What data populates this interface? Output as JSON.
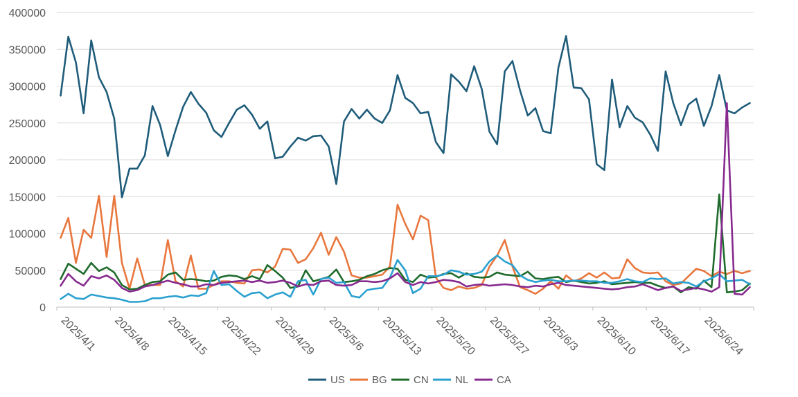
{
  "chart_data": {
    "type": "line",
    "title": "",
    "xlabel": "",
    "ylabel": "",
    "ylim": [
      0,
      400000
    ],
    "yticks": [
      "0",
      "50000",
      "100000",
      "150000",
      "200000",
      "250000",
      "300000",
      "350000",
      "400000"
    ],
    "x_tick_labels": [
      "2025/4/1",
      "2025/4/8",
      "2025/4/15",
      "2025/4/22",
      "2025/4/29",
      "2025/5/6",
      "2025/5/13",
      "2025/5/20",
      "2025/5/27",
      "2025/6/3",
      "2025/6/10",
      "2025/6/17",
      "2025/6/24"
    ],
    "x_start": "2025/4/1",
    "x_end": "2025/6/30",
    "grid": "horizontal",
    "legend_position": "bottom",
    "series": [
      {
        "name": "US",
        "color": "#1f5c7a",
        "values": [
          287000,
          367000,
          332000,
          263000,
          362000,
          312000,
          292000,
          256000,
          149000,
          188000,
          188000,
          206000,
          273000,
          247000,
          205000,
          240000,
          272000,
          292000,
          276000,
          264000,
          240000,
          231000,
          250000,
          268000,
          274000,
          261000,
          242000,
          252000,
          202000,
          204000,
          218000,
          230000,
          226000,
          232000,
          233000,
          218000,
          167000,
          252000,
          269000,
          256000,
          268000,
          256000,
          250000,
          267000,
          315000,
          284000,
          277000,
          263000,
          265000,
          224000,
          209000,
          316000,
          306000,
          293000,
          327000,
          296000,
          238000,
          221000,
          320000,
          334000,
          294000,
          260000,
          270000,
          239000,
          236000,
          325000,
          368000,
          298000,
          297000,
          282000,
          194000,
          186000,
          309000,
          244000,
          273000,
          257000,
          251000,
          234000,
          212000,
          320000,
          277000,
          247000,
          275000,
          283000,
          246000,
          273000,
          315000,
          267000,
          263000,
          271000,
          277000
        ]
      },
      {
        "name": "BG",
        "color": "#e8773d",
        "values": [
          94000,
          121000,
          60000,
          105000,
          94000,
          151000,
          68000,
          151000,
          60000,
          25000,
          66000,
          30000,
          30000,
          30000,
          91000,
          35000,
          28000,
          70000,
          25000,
          25000,
          30000,
          35000,
          35000,
          33000,
          32000,
          50000,
          51000,
          47000,
          55000,
          79000,
          78000,
          60000,
          65000,
          80000,
          101000,
          71000,
          95000,
          75000,
          43000,
          40000,
          40000,
          42000,
          44000,
          55000,
          139000,
          113000,
          92000,
          124000,
          118000,
          40000,
          26000,
          23000,
          28000,
          25000,
          26000,
          30000,
          55000,
          70000,
          91000,
          55000,
          27000,
          23000,
          18000,
          25000,
          35000,
          25000,
          43000,
          35000,
          39000,
          46000,
          40000,
          47000,
          39000,
          40000,
          65000,
          53000,
          47000,
          46000,
          47000,
          35000,
          30000,
          32000,
          42000,
          52000,
          49000,
          42000,
          48000,
          45000,
          49000,
          46000,
          49000
        ]
      },
      {
        "name": "CN",
        "color": "#1e6b2c",
        "values": [
          38000,
          59000,
          52000,
          45000,
          60000,
          49000,
          54000,
          47000,
          30000,
          24000,
          25000,
          30000,
          34000,
          35000,
          44000,
          47000,
          37000,
          38000,
          37000,
          35000,
          36000,
          41000,
          43000,
          42000,
          38000,
          42000,
          38000,
          57000,
          49000,
          40000,
          26000,
          28000,
          50000,
          35000,
          38000,
          41000,
          51000,
          34000,
          35000,
          37000,
          42000,
          45000,
          50000,
          53000,
          52000,
          37000,
          34000,
          44000,
          40000,
          41000,
          45000,
          46000,
          40000,
          46000,
          41000,
          40000,
          41000,
          47000,
          44000,
          43000,
          42000,
          48000,
          39000,
          38000,
          40000,
          41000,
          34000,
          36000,
          34000,
          32000,
          33000,
          35000,
          31000,
          32000,
          33000,
          34000,
          33000,
          33000,
          29000,
          26000,
          28000,
          20000,
          27000,
          25000,
          36000,
          27000,
          153000,
          20000,
          21000,
          23000,
          32000
        ]
      },
      {
        "name": "NL",
        "color": "#2aa0cf",
        "values": [
          11000,
          18000,
          12000,
          11000,
          17000,
          15000,
          13000,
          12000,
          10000,
          7000,
          7000,
          8000,
          12000,
          12000,
          14000,
          15000,
          13000,
          16000,
          15000,
          19000,
          49000,
          30000,
          31000,
          22000,
          14000,
          19000,
          20000,
          12000,
          17000,
          20000,
          14000,
          35000,
          37000,
          17000,
          38000,
          40000,
          33000,
          34000,
          15000,
          13000,
          23000,
          25000,
          26000,
          40000,
          64000,
          50000,
          19000,
          25000,
          42000,
          42000,
          44000,
          50000,
          48000,
          44000,
          45000,
          48000,
          62000,
          70000,
          62000,
          57000,
          43000,
          37000,
          34000,
          36000,
          37000,
          35000,
          35000,
          36000,
          36000,
          35000,
          35000,
          33000,
          33000,
          35000,
          38000,
          35000,
          34000,
          39000,
          38000,
          39000,
          32000,
          34000,
          33000,
          28000,
          35000,
          39000,
          45000,
          35000,
          36000,
          37000,
          31000
        ]
      },
      {
        "name": "CA",
        "color": "#872a8f",
        "values": [
          29000,
          45000,
          35000,
          29000,
          42000,
          39000,
          43000,
          37000,
          26000,
          21000,
          23000,
          28000,
          30000,
          33000,
          36000,
          33000,
          31000,
          28000,
          28000,
          31000,
          30000,
          33000,
          34000,
          35000,
          36000,
          34000,
          36000,
          33000,
          34000,
          36000,
          33000,
          28000,
          31000,
          30000,
          35000,
          36000,
          30000,
          29000,
          30000,
          35000,
          35000,
          34000,
          35000,
          39000,
          46000,
          34000,
          30000,
          34000,
          32000,
          34000,
          37000,
          36000,
          34000,
          28000,
          30000,
          31000,
          29000,
          30000,
          31000,
          30000,
          28000,
          27000,
          29000,
          28000,
          31000,
          33000,
          30000,
          29000,
          28000,
          27000,
          26000,
          25000,
          24000,
          25000,
          27000,
          28000,
          31000,
          27000,
          23000,
          26000,
          28000,
          22000,
          24000,
          26000,
          24000,
          21000,
          27000,
          277000,
          18000,
          17000,
          27000
        ]
      }
    ]
  }
}
